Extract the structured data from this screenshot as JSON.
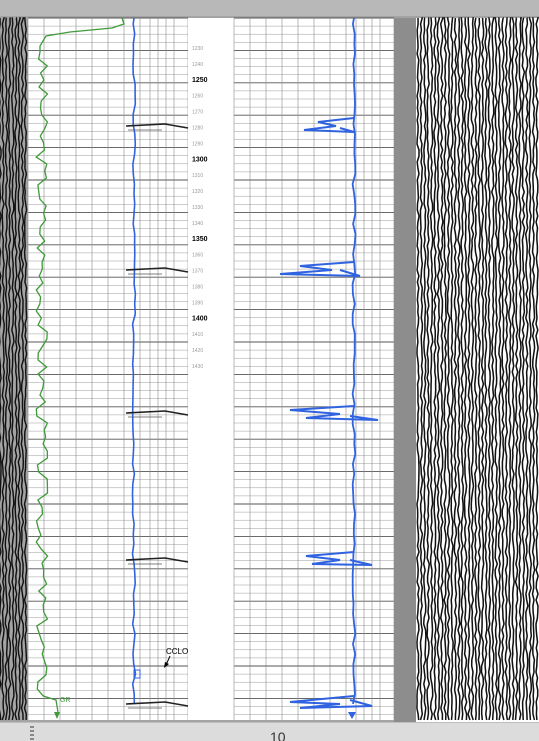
{
  "depth_labels": [
    {
      "value": "1230",
      "major": false
    },
    {
      "value": "1240",
      "major": false
    },
    {
      "value": "1250",
      "major": true
    },
    {
      "value": "1260",
      "major": false
    },
    {
      "value": "1270",
      "major": false
    },
    {
      "value": "1280",
      "major": false
    },
    {
      "value": "1290",
      "major": false
    },
    {
      "value": "1300",
      "major": true
    },
    {
      "value": "1310",
      "major": false
    },
    {
      "value": "1320",
      "major": false
    },
    {
      "value": "1330",
      "major": false
    },
    {
      "value": "1340",
      "major": false
    },
    {
      "value": "1350",
      "major": true
    },
    {
      "value": "1360",
      "major": false
    },
    {
      "value": "1370",
      "major": false
    },
    {
      "value": "1380",
      "major": false
    },
    {
      "value": "1390",
      "major": false
    },
    {
      "value": "1400",
      "major": true
    },
    {
      "value": "1410",
      "major": false
    },
    {
      "value": "1420",
      "major": false
    },
    {
      "value": "1430",
      "major": false
    }
  ],
  "annotation_label": "CCLO",
  "gr_label": "GR",
  "page_number": "10",
  "colors": {
    "green_curve": "#3f9a3a",
    "blue_curve": "#2f63e0",
    "grid": "#808080",
    "panel": "#ffffff",
    "seismic_bg": "#ffffff",
    "gray_band": "#8a8a8a"
  }
}
